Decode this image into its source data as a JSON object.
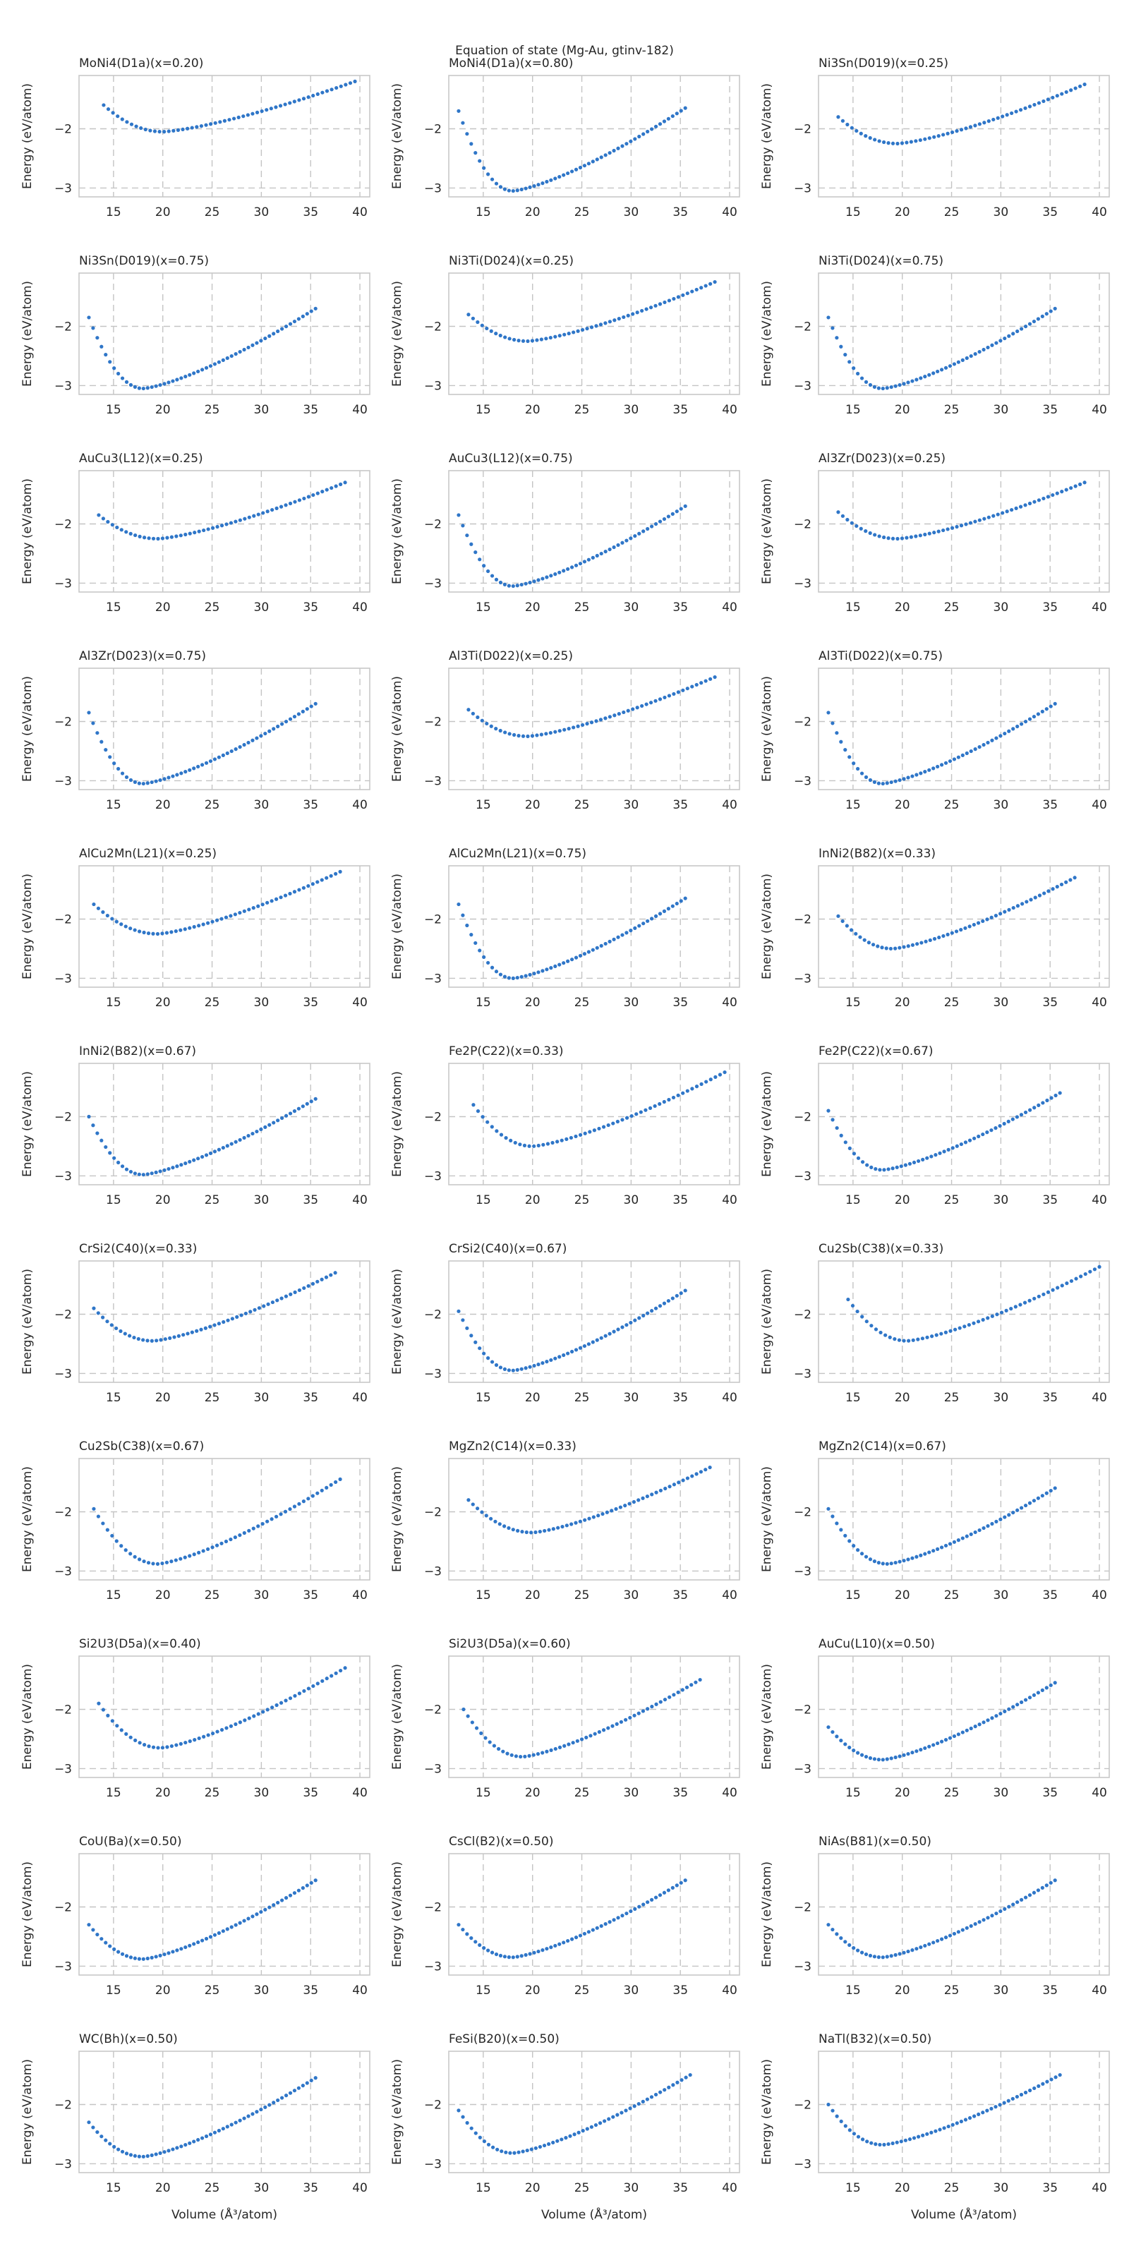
{
  "figure": {
    "suptitle": "Equation of state (Mg-Au, gtinv-182)",
    "xlabel": "Volume (Å³/atom)",
    "ylabel": "Energy (eV/atom)"
  },
  "colors": {
    "marker": "#2f76c8",
    "grid": "#c4c4c4",
    "frame": "#c8c8c8"
  },
  "chart_data": [
    {
      "type": "scatter",
      "title": "MoNi4(D1a)(x=0.20)",
      "xlabel": "",
      "ylabel": "Energy (eV/atom)",
      "xlim": [
        11.5,
        41
      ],
      "ylim": [
        -3.15,
        -1.1
      ],
      "xticks": [
        15,
        20,
        25,
        30,
        35,
        40
      ],
      "yticks": [
        -3,
        -2
      ],
      "grid": true,
      "x_range": [
        14,
        39.5
      ],
      "v0": 20,
      "e0": -2.05,
      "left_end": -1.6,
      "right_end": -1.2
    },
    {
      "type": "scatter",
      "title": "MoNi4(D1a)(x=0.80)",
      "xlabel": "",
      "ylabel": "Energy (eV/atom)",
      "xlim": [
        11.5,
        41
      ],
      "ylim": [
        -3.15,
        -1.1
      ],
      "xticks": [
        15,
        20,
        25,
        30,
        35,
        40
      ],
      "yticks": [
        -3,
        -2
      ],
      "grid": true,
      "x_range": [
        12.5,
        35.5
      ],
      "v0": 18,
      "e0": -3.05,
      "left_end": -1.7,
      "right_end": -1.65
    },
    {
      "type": "scatter",
      "title": "Ni3Sn(D019)(x=0.25)",
      "xlabel": "",
      "ylabel": "Energy (eV/atom)",
      "xlim": [
        11.5,
        41
      ],
      "ylim": [
        -3.15,
        -1.1
      ],
      "xticks": [
        15,
        20,
        25,
        30,
        35,
        40
      ],
      "yticks": [
        -3,
        -2
      ],
      "grid": true,
      "x_range": [
        13.5,
        38.5
      ],
      "v0": 19.5,
      "e0": -2.25,
      "left_end": -1.8,
      "right_end": -1.25
    },
    {
      "type": "scatter",
      "title": "Ni3Sn(D019)(x=0.75)",
      "xlabel": "",
      "ylabel": "Energy (eV/atom)",
      "xlim": [
        11.5,
        41
      ],
      "ylim": [
        -3.15,
        -1.1
      ],
      "xticks": [
        15,
        20,
        25,
        30,
        35,
        40
      ],
      "yticks": [
        -3,
        -2
      ],
      "grid": true,
      "x_range": [
        12.5,
        35.5
      ],
      "v0": 18,
      "e0": -3.05,
      "left_end": -1.85,
      "right_end": -1.7
    },
    {
      "type": "scatter",
      "title": "Ni3Ti(D024)(x=0.25)",
      "xlabel": "",
      "ylabel": "Energy (eV/atom)",
      "xlim": [
        11.5,
        41
      ],
      "ylim": [
        -3.15,
        -1.1
      ],
      "xticks": [
        15,
        20,
        25,
        30,
        35,
        40
      ],
      "yticks": [
        -3,
        -2
      ],
      "grid": true,
      "x_range": [
        13.5,
        38.5
      ],
      "v0": 19.5,
      "e0": -2.25,
      "left_end": -1.8,
      "right_end": -1.25
    },
    {
      "type": "scatter",
      "title": "Ni3Ti(D024)(x=0.75)",
      "xlabel": "",
      "ylabel": "Energy (eV/atom)",
      "xlim": [
        11.5,
        41
      ],
      "ylim": [
        -3.15,
        -1.1
      ],
      "xticks": [
        15,
        20,
        25,
        30,
        35,
        40
      ],
      "yticks": [
        -3,
        -2
      ],
      "grid": true,
      "x_range": [
        12.5,
        35.5
      ],
      "v0": 18,
      "e0": -3.05,
      "left_end": -1.85,
      "right_end": -1.7
    },
    {
      "type": "scatter",
      "title": "AuCu3(L12)(x=0.25)",
      "xlabel": "",
      "ylabel": "Energy (eV/atom)",
      "xlim": [
        11.5,
        41
      ],
      "ylim": [
        -3.15,
        -1.1
      ],
      "xticks": [
        15,
        20,
        25,
        30,
        35,
        40
      ],
      "yticks": [
        -3,
        -2
      ],
      "grid": true,
      "x_range": [
        13.5,
        38.5
      ],
      "v0": 19.5,
      "e0": -2.25,
      "left_end": -1.85,
      "right_end": -1.3
    },
    {
      "type": "scatter",
      "title": "AuCu3(L12)(x=0.75)",
      "xlabel": "",
      "ylabel": "Energy (eV/atom)",
      "xlim": [
        11.5,
        41
      ],
      "ylim": [
        -3.15,
        -1.1
      ],
      "xticks": [
        15,
        20,
        25,
        30,
        35,
        40
      ],
      "yticks": [
        -3,
        -2
      ],
      "grid": true,
      "x_range": [
        12.5,
        35.5
      ],
      "v0": 18,
      "e0": -3.05,
      "left_end": -1.85,
      "right_end": -1.7
    },
    {
      "type": "scatter",
      "title": "Al3Zr(D023)(x=0.25)",
      "xlabel": "",
      "ylabel": "Energy (eV/atom)",
      "xlim": [
        11.5,
        41
      ],
      "ylim": [
        -3.15,
        -1.1
      ],
      "xticks": [
        15,
        20,
        25,
        30,
        35,
        40
      ],
      "yticks": [
        -3,
        -2
      ],
      "grid": true,
      "x_range": [
        13.5,
        38.5
      ],
      "v0": 19.5,
      "e0": -2.25,
      "left_end": -1.8,
      "right_end": -1.3
    },
    {
      "type": "scatter",
      "title": "Al3Zr(D023)(x=0.75)",
      "xlabel": "",
      "ylabel": "Energy (eV/atom)",
      "xlim": [
        11.5,
        41
      ],
      "ylim": [
        -3.15,
        -1.1
      ],
      "xticks": [
        15,
        20,
        25,
        30,
        35,
        40
      ],
      "yticks": [
        -3,
        -2
      ],
      "grid": true,
      "x_range": [
        12.5,
        35.5
      ],
      "v0": 18,
      "e0": -3.05,
      "left_end": -1.85,
      "right_end": -1.7
    },
    {
      "type": "scatter",
      "title": "Al3Ti(D022)(x=0.25)",
      "xlabel": "",
      "ylabel": "Energy (eV/atom)",
      "xlim": [
        11.5,
        41
      ],
      "ylim": [
        -3.15,
        -1.1
      ],
      "xticks": [
        15,
        20,
        25,
        30,
        35,
        40
      ],
      "yticks": [
        -3,
        -2
      ],
      "grid": true,
      "x_range": [
        13.5,
        38.5
      ],
      "v0": 19.5,
      "e0": -2.25,
      "left_end": -1.8,
      "right_end": -1.25
    },
    {
      "type": "scatter",
      "title": "Al3Ti(D022)(x=0.75)",
      "xlabel": "",
      "ylabel": "Energy (eV/atom)",
      "xlim": [
        11.5,
        41
      ],
      "ylim": [
        -3.15,
        -1.1
      ],
      "xticks": [
        15,
        20,
        25,
        30,
        35,
        40
      ],
      "yticks": [
        -3,
        -2
      ],
      "grid": true,
      "x_range": [
        12.5,
        35.5
      ],
      "v0": 18,
      "e0": -3.05,
      "left_end": -1.85,
      "right_end": -1.7
    },
    {
      "type": "scatter",
      "title": "AlCu2Mn(L21)(x=0.25)",
      "xlabel": "",
      "ylabel": "Energy (eV/atom)",
      "xlim": [
        11.5,
        41
      ],
      "ylim": [
        -3.15,
        -1.1
      ],
      "xticks": [
        15,
        20,
        25,
        30,
        35,
        40
      ],
      "yticks": [
        -3,
        -2
      ],
      "grid": true,
      "x_range": [
        13,
        38
      ],
      "v0": 19.5,
      "e0": -2.25,
      "left_end": -1.75,
      "right_end": -1.2
    },
    {
      "type": "scatter",
      "title": "AlCu2Mn(L21)(x=0.75)",
      "xlabel": "",
      "ylabel": "Energy (eV/atom)",
      "xlim": [
        11.5,
        41
      ],
      "ylim": [
        -3.15,
        -1.1
      ],
      "xticks": [
        15,
        20,
        25,
        30,
        35,
        40
      ],
      "yticks": [
        -3,
        -2
      ],
      "grid": true,
      "x_range": [
        12.5,
        35.5
      ],
      "v0": 18,
      "e0": -3.0,
      "left_end": -1.75,
      "right_end": -1.65
    },
    {
      "type": "scatter",
      "title": "InNi2(B82)(x=0.33)",
      "xlabel": "",
      "ylabel": "Energy (eV/atom)",
      "xlim": [
        11.5,
        41
      ],
      "ylim": [
        -3.15,
        -1.1
      ],
      "xticks": [
        15,
        20,
        25,
        30,
        35,
        40
      ],
      "yticks": [
        -3,
        -2
      ],
      "grid": true,
      "x_range": [
        13.5,
        37.5
      ],
      "v0": 19,
      "e0": -2.5,
      "left_end": -1.95,
      "right_end": -1.3
    },
    {
      "type": "scatter",
      "title": "InNi2(B82)(x=0.67)",
      "xlabel": "",
      "ylabel": "Energy (eV/atom)",
      "xlim": [
        11.5,
        41
      ],
      "ylim": [
        -3.15,
        -1.1
      ],
      "xticks": [
        15,
        20,
        25,
        30,
        35,
        40
      ],
      "yticks": [
        -3,
        -2
      ],
      "grid": true,
      "x_range": [
        12.5,
        35.5
      ],
      "v0": 18,
      "e0": -2.98,
      "left_end": -2.0,
      "right_end": -1.7
    },
    {
      "type": "scatter",
      "title": "Fe2P(C22)(x=0.33)",
      "xlabel": "",
      "ylabel": "Energy (eV/atom)",
      "xlim": [
        11.5,
        41
      ],
      "ylim": [
        -3.15,
        -1.1
      ],
      "xticks": [
        15,
        20,
        25,
        30,
        35,
        40
      ],
      "yticks": [
        -3,
        -2
      ],
      "grid": true,
      "x_range": [
        14,
        39.5
      ],
      "v0": 20,
      "e0": -2.5,
      "left_end": -1.8,
      "right_end": -1.25
    },
    {
      "type": "scatter",
      "title": "Fe2P(C22)(x=0.67)",
      "xlabel": "",
      "ylabel": "Energy (eV/atom)",
      "xlim": [
        11.5,
        41
      ],
      "ylim": [
        -3.15,
        -1.1
      ],
      "xticks": [
        15,
        20,
        25,
        30,
        35,
        40
      ],
      "yticks": [
        -3,
        -2
      ],
      "grid": true,
      "x_range": [
        12.5,
        36
      ],
      "v0": 18,
      "e0": -2.9,
      "left_end": -1.9,
      "right_end": -1.6
    },
    {
      "type": "scatter",
      "title": "CrSi2(C40)(x=0.33)",
      "xlabel": "",
      "ylabel": "Energy (eV/atom)",
      "xlim": [
        11.5,
        41
      ],
      "ylim": [
        -3.15,
        -1.1
      ],
      "xticks": [
        15,
        20,
        25,
        30,
        35,
        40
      ],
      "yticks": [
        -3,
        -2
      ],
      "grid": true,
      "x_range": [
        13,
        37.5
      ],
      "v0": 19,
      "e0": -2.45,
      "left_end": -1.9,
      "right_end": -1.3
    },
    {
      "type": "scatter",
      "title": "CrSi2(C40)(x=0.67)",
      "xlabel": "",
      "ylabel": "Energy (eV/atom)",
      "xlim": [
        11.5,
        41
      ],
      "ylim": [
        -3.15,
        -1.1
      ],
      "xticks": [
        15,
        20,
        25,
        30,
        35,
        40
      ],
      "yticks": [
        -3,
        -2
      ],
      "grid": true,
      "x_range": [
        12.5,
        35.5
      ],
      "v0": 18,
      "e0": -2.95,
      "left_end": -1.95,
      "right_end": -1.6
    },
    {
      "type": "scatter",
      "title": "Cu2Sb(C38)(x=0.33)",
      "xlabel": "",
      "ylabel": "Energy (eV/atom)",
      "xlim": [
        11.5,
        41
      ],
      "ylim": [
        -3.15,
        -1.1
      ],
      "xticks": [
        15,
        20,
        25,
        30,
        35,
        40
      ],
      "yticks": [
        -3,
        -2
      ],
      "grid": true,
      "x_range": [
        14.5,
        40
      ],
      "v0": 20.5,
      "e0": -2.45,
      "left_end": -1.75,
      "right_end": -1.2
    },
    {
      "type": "scatter",
      "title": "Cu2Sb(C38)(x=0.67)",
      "xlabel": "",
      "ylabel": "Energy (eV/atom)",
      "xlim": [
        11.5,
        41
      ],
      "ylim": [
        -3.15,
        -1.1
      ],
      "xticks": [
        15,
        20,
        25,
        30,
        35,
        40
      ],
      "yticks": [
        -3,
        -2
      ],
      "grid": true,
      "x_range": [
        13,
        38
      ],
      "v0": 19.5,
      "e0": -2.88,
      "left_end": -1.95,
      "right_end": -1.45
    },
    {
      "type": "scatter",
      "title": "MgZn2(C14)(x=0.33)",
      "xlabel": "",
      "ylabel": "Energy (eV/atom)",
      "xlim": [
        11.5,
        41
      ],
      "ylim": [
        -3.15,
        -1.1
      ],
      "xticks": [
        15,
        20,
        25,
        30,
        35,
        40
      ],
      "yticks": [
        -3,
        -2
      ],
      "grid": true,
      "x_range": [
        13.5,
        38
      ],
      "v0": 20,
      "e0": -2.35,
      "left_end": -1.8,
      "right_end": -1.25
    },
    {
      "type": "scatter",
      "title": "MgZn2(C14)(x=0.67)",
      "xlabel": "",
      "ylabel": "Energy (eV/atom)",
      "xlim": [
        11.5,
        41
      ],
      "ylim": [
        -3.15,
        -1.1
      ],
      "xticks": [
        15,
        20,
        25,
        30,
        35,
        40
      ],
      "yticks": [
        -3,
        -2
      ],
      "grid": true,
      "x_range": [
        12.5,
        35.5
      ],
      "v0": 18.5,
      "e0": -2.88,
      "left_end": -1.95,
      "right_end": -1.6
    },
    {
      "type": "scatter",
      "title": "Si2U3(D5a)(x=0.40)",
      "xlabel": "",
      "ylabel": "Energy (eV/atom)",
      "xlim": [
        11.5,
        41
      ],
      "ylim": [
        -3.15,
        -1.1
      ],
      "xticks": [
        15,
        20,
        25,
        30,
        35,
        40
      ],
      "yticks": [
        -3,
        -2
      ],
      "grid": true,
      "x_range": [
        13.5,
        38.5
      ],
      "v0": 19.8,
      "e0": -2.65,
      "left_end": -1.9,
      "right_end": -1.3
    },
    {
      "type": "scatter",
      "title": "Si2U3(D5a)(x=0.60)",
      "xlabel": "",
      "ylabel": "Energy (eV/atom)",
      "xlim": [
        11.5,
        41
      ],
      "ylim": [
        -3.15,
        -1.1
      ],
      "xticks": [
        15,
        20,
        25,
        30,
        35,
        40
      ],
      "yticks": [
        -3,
        -2
      ],
      "grid": true,
      "x_range": [
        13,
        37
      ],
      "v0": 19,
      "e0": -2.8,
      "left_end": -2.0,
      "right_end": -1.5
    },
    {
      "type": "scatter",
      "title": "AuCu(L10)(x=0.50)",
      "xlabel": "",
      "ylabel": "Energy (eV/atom)",
      "xlim": [
        11.5,
        41
      ],
      "ylim": [
        -3.15,
        -1.1
      ],
      "xticks": [
        15,
        20,
        25,
        30,
        35,
        40
      ],
      "yticks": [
        -3,
        -2
      ],
      "grid": true,
      "x_range": [
        12.5,
        35.5
      ],
      "v0": 18,
      "e0": -2.85,
      "left_end": -2.3,
      "right_end": -1.55
    },
    {
      "type": "scatter",
      "title": "CoU(Ba)(x=0.50)",
      "xlabel": "",
      "ylabel": "Energy (eV/atom)",
      "xlim": [
        11.5,
        41
      ],
      "ylim": [
        -3.15,
        -1.1
      ],
      "xticks": [
        15,
        20,
        25,
        30,
        35,
        40
      ],
      "yticks": [
        -3,
        -2
      ],
      "grid": true,
      "x_range": [
        12.5,
        35.5
      ],
      "v0": 18,
      "e0": -2.88,
      "left_end": -2.3,
      "right_end": -1.55
    },
    {
      "type": "scatter",
      "title": "CsCl(B2)(x=0.50)",
      "xlabel": "",
      "ylabel": "Energy (eV/atom)",
      "xlim": [
        11.5,
        41
      ],
      "ylim": [
        -3.15,
        -1.1
      ],
      "xticks": [
        15,
        20,
        25,
        30,
        35,
        40
      ],
      "yticks": [
        -3,
        -2
      ],
      "grid": true,
      "x_range": [
        12.5,
        35.5
      ],
      "v0": 18,
      "e0": -2.85,
      "left_end": -2.3,
      "right_end": -1.55
    },
    {
      "type": "scatter",
      "title": "NiAs(B81)(x=0.50)",
      "xlabel": "",
      "ylabel": "Energy (eV/atom)",
      "xlim": [
        11.5,
        41
      ],
      "ylim": [
        -3.15,
        -1.1
      ],
      "xticks": [
        15,
        20,
        25,
        30,
        35,
        40
      ],
      "yticks": [
        -3,
        -2
      ],
      "grid": true,
      "x_range": [
        12.5,
        35.5
      ],
      "v0": 18,
      "e0": -2.85,
      "left_end": -2.3,
      "right_end": -1.55
    },
    {
      "type": "scatter",
      "title": "WC(Bh)(x=0.50)",
      "xlabel": "Volume (Å³/atom)",
      "ylabel": "Energy (eV/atom)",
      "xlim": [
        11.5,
        41
      ],
      "ylim": [
        -3.15,
        -1.1
      ],
      "xticks": [
        15,
        20,
        25,
        30,
        35,
        40
      ],
      "yticks": [
        -3,
        -2
      ],
      "grid": true,
      "x_range": [
        12.5,
        35.5
      ],
      "v0": 18,
      "e0": -2.88,
      "left_end": -2.3,
      "right_end": -1.55
    },
    {
      "type": "scatter",
      "title": "FeSi(B20)(x=0.50)",
      "xlabel": "Volume (Å³/atom)",
      "ylabel": "Energy (eV/atom)",
      "xlim": [
        11.5,
        41
      ],
      "ylim": [
        -3.15,
        -1.1
      ],
      "xticks": [
        15,
        20,
        25,
        30,
        35,
        40
      ],
      "yticks": [
        -3,
        -2
      ],
      "grid": true,
      "x_range": [
        12.5,
        36
      ],
      "v0": 18,
      "e0": -2.82,
      "left_end": -2.1,
      "right_end": -1.5
    },
    {
      "type": "scatter",
      "title": "NaTl(B32)(x=0.50)",
      "xlabel": "Volume (Å³/atom)",
      "ylabel": "Energy (eV/atom)",
      "xlim": [
        11.5,
        41
      ],
      "ylim": [
        -3.15,
        -1.1
      ],
      "xticks": [
        15,
        20,
        25,
        30,
        35,
        40
      ],
      "yticks": [
        -3,
        -2
      ],
      "grid": true,
      "x_range": [
        12.5,
        36
      ],
      "v0": 18,
      "e0": -2.68,
      "left_end": -2.0,
      "right_end": -1.5
    }
  ]
}
